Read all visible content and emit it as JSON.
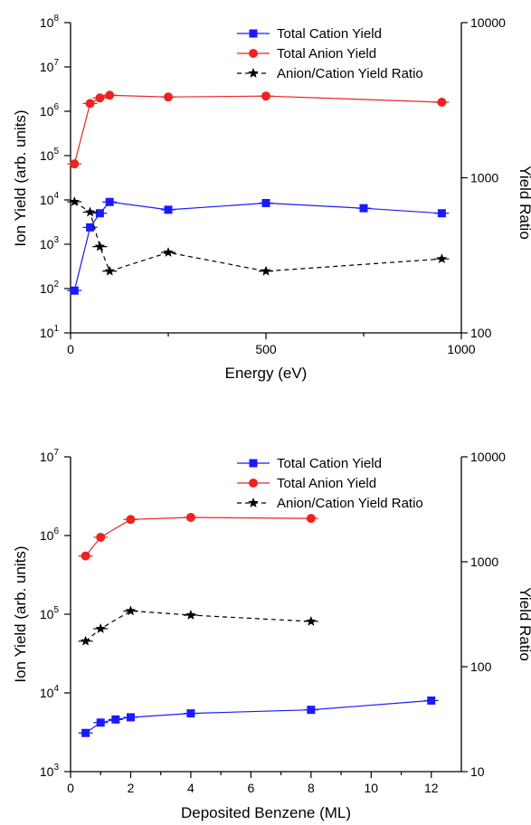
{
  "chart_data": [
    {
      "type": "line",
      "x_axis": {
        "label": "Energy (eV)",
        "range": [
          0,
          1000
        ],
        "ticks": [
          0,
          500,
          1000
        ],
        "tick_labels": [
          "0",
          "500",
          "1000"
        ]
      },
      "y_axis_left": {
        "label": "Ion Yield (arb. units)",
        "scale": "log",
        "range": [
          10,
          100000000
        ],
        "ticks": [
          10,
          100,
          1000,
          10000,
          100000,
          1000000,
          10000000,
          100000000
        ],
        "tick_labels": [
          {
            "base": "10",
            "exp": "1"
          },
          {
            "base": "10",
            "exp": "2"
          },
          {
            "base": "10",
            "exp": "3"
          },
          {
            "base": "10",
            "exp": "4"
          },
          {
            "base": "10",
            "exp": "5"
          },
          {
            "base": "10",
            "exp": "6"
          },
          {
            "base": "10",
            "exp": "7"
          },
          {
            "base": "10",
            "exp": "8"
          }
        ]
      },
      "y_axis_right": {
        "label": "Yield Ratio",
        "scale": "log",
        "range": [
          100,
          10000
        ],
        "ticks": [
          100,
          1000,
          10000
        ],
        "tick_labels": [
          "100",
          "1000",
          "10000"
        ]
      },
      "legend_position": "top-right",
      "series": [
        {
          "name": "Total Cation Yield",
          "color": "#1a1aff",
          "marker": "square",
          "line": "solid",
          "axis": "left",
          "x": [
            10,
            50,
            75,
            100,
            250,
            500,
            750,
            950
          ],
          "y": [
            90,
            2400,
            5000,
            9000,
            6000,
            8500,
            6500,
            5000
          ]
        },
        {
          "name": "Total Anion Yield",
          "color": "#ee2222",
          "marker": "circle",
          "line": "solid",
          "axis": "left",
          "x": [
            10,
            50,
            75,
            100,
            250,
            500,
            950
          ],
          "y": [
            65000,
            1500000,
            2000000,
            2300000,
            2100000,
            2200000,
            1600000
          ]
        },
        {
          "name": "Anion/Cation Yield Ratio",
          "color": "#000000",
          "marker": "star",
          "line": "dashed",
          "axis": "right",
          "x": [
            10,
            50,
            75,
            100,
            250,
            500,
            950
          ],
          "y": [
            700,
            600,
            360,
            250,
            330,
            250,
            300
          ]
        }
      ]
    },
    {
      "type": "line",
      "x_axis": {
        "label": "Deposited Benzene (ML)",
        "range": [
          0,
          13
        ],
        "ticks": [
          0,
          2,
          4,
          6,
          8,
          10,
          12
        ],
        "tick_labels": [
          "0",
          "2",
          "4",
          "6",
          "8",
          "10",
          "12"
        ]
      },
      "y_axis_left": {
        "label": "Ion Yield (arb. units)",
        "scale": "log",
        "range": [
          1000,
          10000000
        ],
        "ticks": [
          1000,
          10000,
          100000,
          1000000,
          10000000
        ],
        "tick_labels": [
          {
            "base": "10",
            "exp": "3"
          },
          {
            "base": "10",
            "exp": "4"
          },
          {
            "base": "10",
            "exp": "5"
          },
          {
            "base": "10",
            "exp": "6"
          },
          {
            "base": "10",
            "exp": "7"
          }
        ]
      },
      "y_axis_right": {
        "label": "Yield Ratio",
        "scale": "log",
        "range": [
          10,
          10000
        ],
        "ticks": [
          10,
          100,
          1000,
          10000
        ],
        "tick_labels": [
          "10",
          "100",
          "1000",
          "10000"
        ]
      },
      "legend_position": "top-right",
      "series": [
        {
          "name": "Total Cation Yield",
          "color": "#1a1aff",
          "marker": "square",
          "line": "solid",
          "axis": "left",
          "x": [
            0.5,
            1,
            1.5,
            2,
            4,
            8,
            12
          ],
          "y": [
            3100,
            4200,
            4600,
            4900,
            5500,
            6100,
            8000
          ]
        },
        {
          "name": "Total Anion Yield",
          "color": "#ee2222",
          "marker": "circle",
          "line": "solid",
          "axis": "left",
          "x": [
            0.5,
            1,
            2,
            4,
            8
          ],
          "y": [
            550000,
            950000,
            1600000,
            1700000,
            1650000
          ]
        },
        {
          "name": "Anion/Cation Yield Ratio",
          "color": "#000000",
          "marker": "star",
          "line": "dashed",
          "axis": "right",
          "x": [
            0.5,
            1,
            2,
            4,
            8
          ],
          "y": [
            175,
            230,
            340,
            310,
            270
          ]
        }
      ]
    }
  ]
}
